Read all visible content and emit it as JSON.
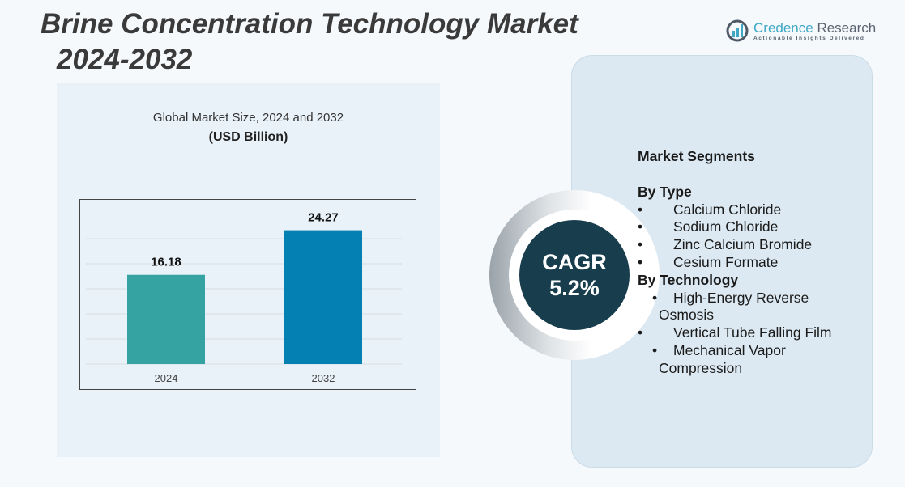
{
  "header": {
    "title_line1": "Brine Concentration Technology Market",
    "title_line2": "2024-2032"
  },
  "logo": {
    "name_part1": "Credence",
    "name_part2": " Research",
    "tagline": "Actionable Insights Delivered"
  },
  "colors": {
    "bar_2024": "#35a3a2",
    "bar_2032": "#0580b2",
    "cagr_circle": "#183d4d"
  },
  "chart_data": {
    "type": "bar",
    "title": "Global Market Size, 2024 and 2032",
    "ylabel": "(USD Billion)",
    "categories": [
      "2024",
      "2032"
    ],
    "values": [
      16.18,
      24.27
    ],
    "value_labels": [
      "16.18",
      "24.27"
    ],
    "grid": true
  },
  "cagr": {
    "label": "CAGR",
    "value": "5.2%"
  },
  "segments": {
    "heading": "Market Segments",
    "groups": [
      {
        "title": "By Type",
        "items": [
          "Calcium Chloride",
          "Sodium Chloride",
          "Zinc Calcium Bromide",
          "Cesium Formate"
        ]
      },
      {
        "title": "By Technology",
        "items": [
          "High-Energy Reverse Osmosis",
          "Vertical Tube Falling Film",
          "Mechanical Vapor Compression"
        ]
      }
    ]
  }
}
